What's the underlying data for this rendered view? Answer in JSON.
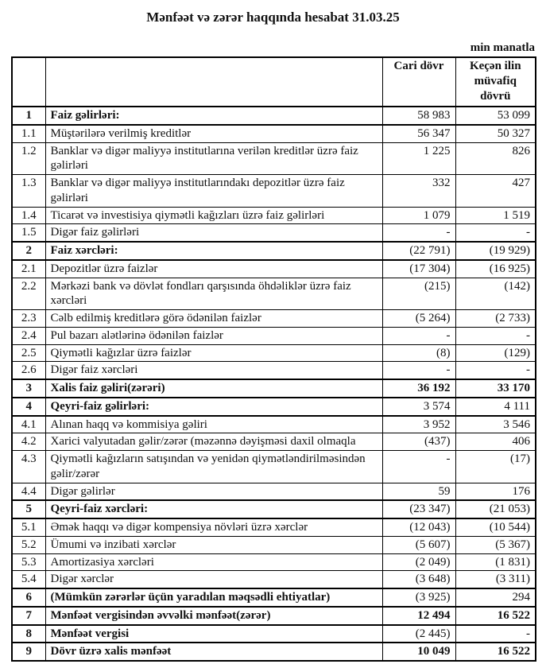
{
  "page": {
    "title": "Mənfəət və zərər haqqında hesabat 31.03.25",
    "unit_note": "min manatla"
  },
  "colors": {
    "text": "#111111",
    "border": "#000000",
    "background": "#ffffff"
  },
  "table": {
    "header": {
      "no": "",
      "label": "",
      "current": "Cari dövr",
      "previous": "Keçən ilin müvafiq dövrü"
    },
    "rows": [
      {
        "no": "1",
        "label": "Faiz gəlirləri:",
        "current": "58 983",
        "previous": "53 099",
        "section": true,
        "bold_values": false
      },
      {
        "no": "1.1",
        "label": "Müştərilərə verilmiş kreditlər",
        "current": "56 347",
        "previous": "50 327",
        "section": false,
        "bold_values": false
      },
      {
        "no": "1.2",
        "label": "Banklar və digər maliyyə institutlarına verilən kreditlər üzrə faiz gəlirləri",
        "current": "1 225",
        "previous": "826",
        "section": false,
        "bold_values": false
      },
      {
        "no": "1.3",
        "label": "Banklar və digər maliyyə institutlarındakı depozitlər üzrə faiz gəlirləri",
        "current": "332",
        "previous": "427",
        "section": false,
        "bold_values": false
      },
      {
        "no": "1.4",
        "label": "Ticarət və investisiya qiymətli kağızları üzrə faiz gəlirləri",
        "current": "1 079",
        "previous": "1 519",
        "section": false,
        "bold_values": false
      },
      {
        "no": "1.5",
        "label": "Digər faiz gəlirləri",
        "current": "-",
        "previous": "-",
        "section": false,
        "bold_values": false
      },
      {
        "no": "2",
        "label": "Faiz xərcləri:",
        "current": "(22 791)",
        "previous": "(19 929)",
        "section": true,
        "bold_values": false
      },
      {
        "no": "2.1",
        "label": "Depozitlər üzrə faizlər",
        "current": "(17 304)",
        "previous": "(16 925)",
        "section": false,
        "bold_values": false
      },
      {
        "no": "2.2",
        "label": "Mərkəzi bank və dövlət fondları qarşısında öhdəliklər üzrə faiz xərcləri",
        "current": "(215)",
        "previous": "(142)",
        "section": false,
        "bold_values": false
      },
      {
        "no": "2.3",
        "label": "Cəlb edilmiş kreditlərə görə ödənilən faizlər",
        "current": "(5 264)",
        "previous": "(2 733)",
        "section": false,
        "bold_values": false
      },
      {
        "no": "2.4",
        "label": "Pul bazarı alətlərinə ödənilən faizlər",
        "current": "-",
        "previous": "-",
        "section": false,
        "bold_values": false
      },
      {
        "no": "2.5",
        "label": "Qiymətli kağızlar üzrə faizlər",
        "current": "(8)",
        "previous": "(129)",
        "section": false,
        "bold_values": false
      },
      {
        "no": "2.6",
        "label": "Digər faiz xərcləri",
        "current": "-",
        "previous": "-",
        "section": false,
        "bold_values": false
      },
      {
        "no": "3",
        "label": "Xalis faiz gəliri(zərəri)",
        "current": "36 192",
        "previous": "33 170",
        "section": true,
        "bold_values": true
      },
      {
        "no": "4",
        "label": "Qeyri-faiz gəlirləri:",
        "current": "3 574",
        "previous": "4 111",
        "section": true,
        "bold_values": false
      },
      {
        "no": "4.1",
        "label": "Alınan haqq və kommisiya gəliri",
        "current": "3 952",
        "previous": "3 546",
        "section": false,
        "bold_values": false
      },
      {
        "no": "4.2",
        "label": "Xarici valyutadan gəlir/zərər (məzənnə dəyişməsi daxil olmaqla",
        "current": "(437)",
        "previous": "406",
        "section": false,
        "bold_values": false
      },
      {
        "no": "4.3",
        "label": "Qiymətli kağızların satışından və yenidən qiymətləndirilməsindən gəlir/zərər",
        "current": "-",
        "previous": "(17)",
        "section": false,
        "bold_values": false
      },
      {
        "no": "4.4",
        "label": "Digər gəlirlər",
        "current": "59",
        "previous": "176",
        "section": false,
        "bold_values": false
      },
      {
        "no": "5",
        "label": "Qeyri-faiz xərcləri:",
        "current": "(23 347)",
        "previous": "(21 053)",
        "section": true,
        "bold_values": false
      },
      {
        "no": "5.1",
        "label": "Əmək haqqı və digər kompensiya növləri üzrə xərclər",
        "current": "(12 043)",
        "previous": "(10 544)",
        "section": false,
        "bold_values": false
      },
      {
        "no": "5.2",
        "label": "Ümumi və inzibati xərclər",
        "current": "(5 607)",
        "previous": "(5 367)",
        "section": false,
        "bold_values": false
      },
      {
        "no": "5.3",
        "label": "Amortizasiya xərcləri",
        "current": "(2 049)",
        "previous": "(1 831)",
        "section": false,
        "bold_values": false
      },
      {
        "no": "5.4",
        "label": "Digər xərclər",
        "current": "(3 648)",
        "previous": "(3 311)",
        "section": false,
        "bold_values": false
      },
      {
        "no": "6",
        "label": "(Mümkün zərərlər üçün yaradılan məqsədli ehtiyatlar)",
        "current": "(3 925)",
        "previous": "294",
        "section": true,
        "bold_values": false
      },
      {
        "no": "7",
        "label": "Mənfəət vergisindən əvvəlki mənfəət(zərər)",
        "current": "12 494",
        "previous": "16 522",
        "section": true,
        "bold_values": true
      },
      {
        "no": "8",
        "label": "Mənfəət vergisi",
        "current": "(2 445)",
        "previous": "-",
        "section": true,
        "bold_values": false
      },
      {
        "no": "9",
        "label": "Dövr üzrə xalis mənfəət",
        "current": "10 049",
        "previous": "16 522",
        "section": true,
        "bold_values": true
      }
    ]
  }
}
